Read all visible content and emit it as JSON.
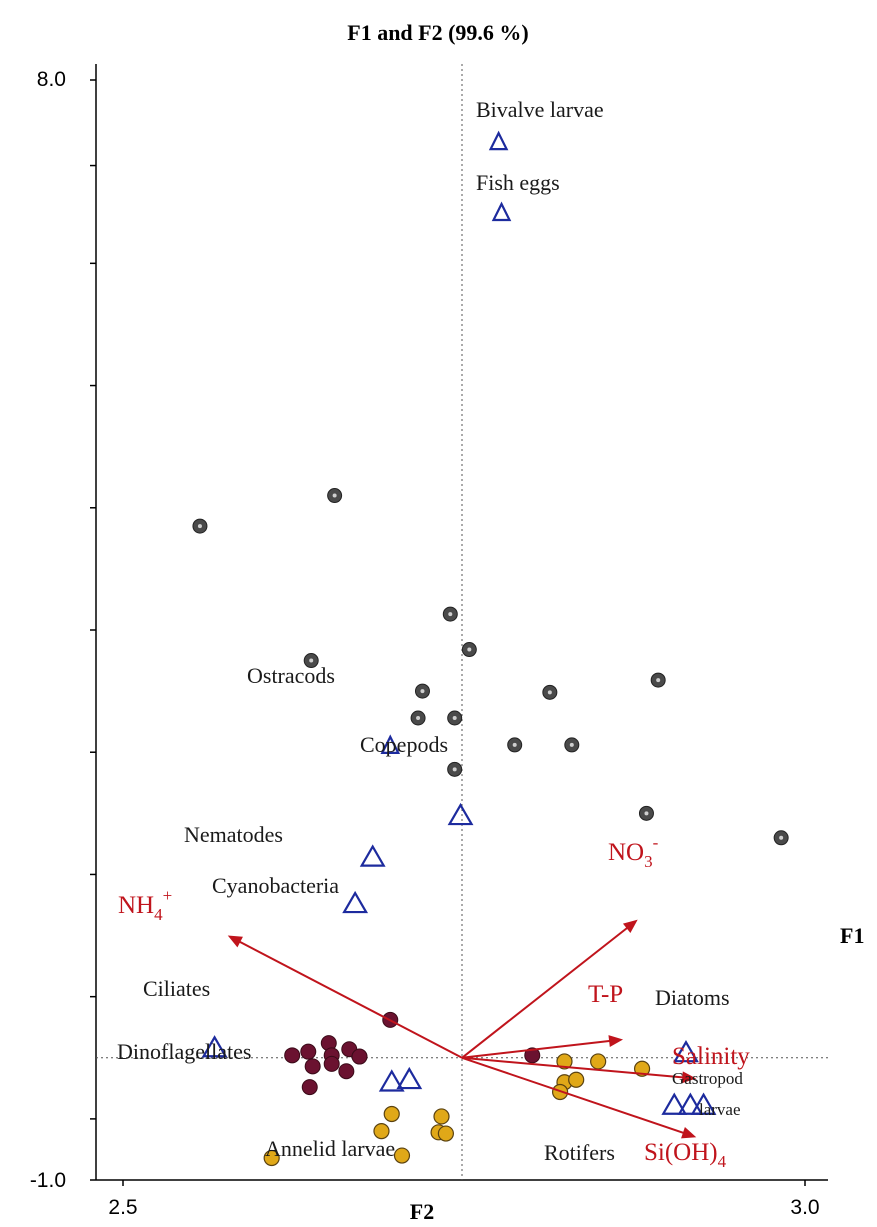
{
  "chart_data": {
    "type": "scatter",
    "title": "F1 and F2 (99.6 %)",
    "xlabel": "F2",
    "ylabel": "",
    "axis_label_f1": "F1",
    "xlim": [
      2.5,
      3.0
    ],
    "ylim": [
      -1.0,
      8.0
    ],
    "x_tick_labels": [
      "2.5",
      "3.0"
    ],
    "y_tick_labels": [
      "8.0",
      "-1.0"
    ],
    "y_minor_ticks": [
      7.3,
      6.5,
      5.5,
      4.5,
      3.5,
      2.5,
      1.5,
      0.5,
      -0.5
    ],
    "origin": {
      "x": 2.75,
      "y": 0.0
    },
    "grid": false,
    "colors": {
      "env": "#c0141c",
      "species": "#1d2b9e",
      "site_grey": "#4a4a4a",
      "site_dark": "#6b1230",
      "site_gold": "#e0a818"
    },
    "env_vectors": [
      {
        "name": "NH4+",
        "label_main": "NH",
        "label_sub": "4",
        "label_sup": "+",
        "x": 2.59,
        "y": 1.0
      },
      {
        "name": "NO3-",
        "label_main": "NO",
        "label_sub": "3",
        "label_sup": "-",
        "x": 2.87,
        "y": 1.13
      },
      {
        "name": "T-P",
        "label_main": "T-P",
        "label_sub": "",
        "label_sup": "",
        "x": 2.86,
        "y": 0.15
      },
      {
        "name": "Salinity",
        "label_main": "Salinity",
        "label_sub": "",
        "label_sup": "",
        "x": 2.91,
        "y": -0.17
      },
      {
        "name": "Si(OH)4",
        "label_main": "Si(OH)",
        "label_sub": "4",
        "label_sup": "",
        "x": 2.91,
        "y": -0.65
      }
    ],
    "species": [
      {
        "label": "Bivalve  larvae",
        "x": 2.775,
        "y": 7.5
      },
      {
        "label": "Fish eggs",
        "x": 2.777,
        "y": 6.92
      },
      {
        "label": "Ostracods",
        "x": 2.701,
        "y": 2.56
      },
      {
        "label": "Copepods",
        "x": 2.749,
        "y": 1.99
      },
      {
        "label": "Nematodes",
        "x": 2.689,
        "y": 1.65
      },
      {
        "label": "Cyanobacteria",
        "x": 2.677,
        "y": 1.27
      },
      {
        "label": "Ciliates",
        "x": 2.581,
        "y": 0.09
      },
      {
        "label": "Dinoflagellates",
        "x": 2.702,
        "y": -0.19
      },
      {
        "label": "",
        "x": 2.714,
        "y": -0.17
      },
      {
        "label": "Diatoms",
        "x": 2.903,
        "y": 0.05
      },
      {
        "label": "Gastropod",
        "label2": "larvae",
        "x": 2.895,
        "y": -0.38
      },
      {
        "label": "",
        "x": 2.906,
        "y": -0.38
      },
      {
        "label": "",
        "x": 2.915,
        "y": -0.38
      }
    ],
    "species_labels_only": [
      {
        "label": "Annelid larvae"
      },
      {
        "label": "Rotifers"
      }
    ],
    "sites_grey": [
      {
        "x": 2.571,
        "y": 4.35
      },
      {
        "x": 2.663,
        "y": 4.6
      },
      {
        "x": 2.647,
        "y": 3.25
      },
      {
        "x": 2.723,
        "y": 3.0
      },
      {
        "x": 2.742,
        "y": 3.63
      },
      {
        "x": 2.755,
        "y": 3.34
      },
      {
        "x": 2.72,
        "y": 2.78
      },
      {
        "x": 2.745,
        "y": 2.78
      },
      {
        "x": 2.786,
        "y": 2.56
      },
      {
        "x": 2.81,
        "y": 2.99
      },
      {
        "x": 2.825,
        "y": 2.56
      },
      {
        "x": 2.884,
        "y": 3.09
      },
      {
        "x": 2.745,
        "y": 2.36
      },
      {
        "x": 2.876,
        "y": 2.0
      },
      {
        "x": 2.968,
        "y": 1.8
      }
    ],
    "sites_dark": [
      {
        "x": 2.659,
        "y": 0.12
      },
      {
        "x": 2.645,
        "y": 0.05
      },
      {
        "x": 2.661,
        "y": 0.02
      },
      {
        "x": 2.673,
        "y": 0.07
      },
      {
        "x": 2.634,
        "y": 0.02
      },
      {
        "x": 2.661,
        "y": -0.05
      },
      {
        "x": 2.648,
        "y": -0.07
      },
      {
        "x": 2.68,
        "y": 0.01
      },
      {
        "x": 2.671,
        "y": -0.11
      },
      {
        "x": 2.646,
        "y": -0.24
      },
      {
        "x": 2.701,
        "y": 0.31
      },
      {
        "x": 2.798,
        "y": 0.02
      }
    ],
    "sites_gold": [
      {
        "x": 2.82,
        "y": -0.03
      },
      {
        "x": 2.843,
        "y": -0.03
      },
      {
        "x": 2.873,
        "y": -0.09
      },
      {
        "x": 2.82,
        "y": -0.2
      },
      {
        "x": 2.828,
        "y": -0.18
      },
      {
        "x": 2.817,
        "y": -0.28
      },
      {
        "x": 2.702,
        "y": -0.46
      },
      {
        "x": 2.695,
        "y": -0.6
      },
      {
        "x": 2.736,
        "y": -0.48
      },
      {
        "x": 2.734,
        "y": -0.61
      },
      {
        "x": 2.739,
        "y": -0.62
      },
      {
        "x": 2.709,
        "y": -0.8
      },
      {
        "x": 2.62,
        "y": -0.82
      }
    ]
  }
}
